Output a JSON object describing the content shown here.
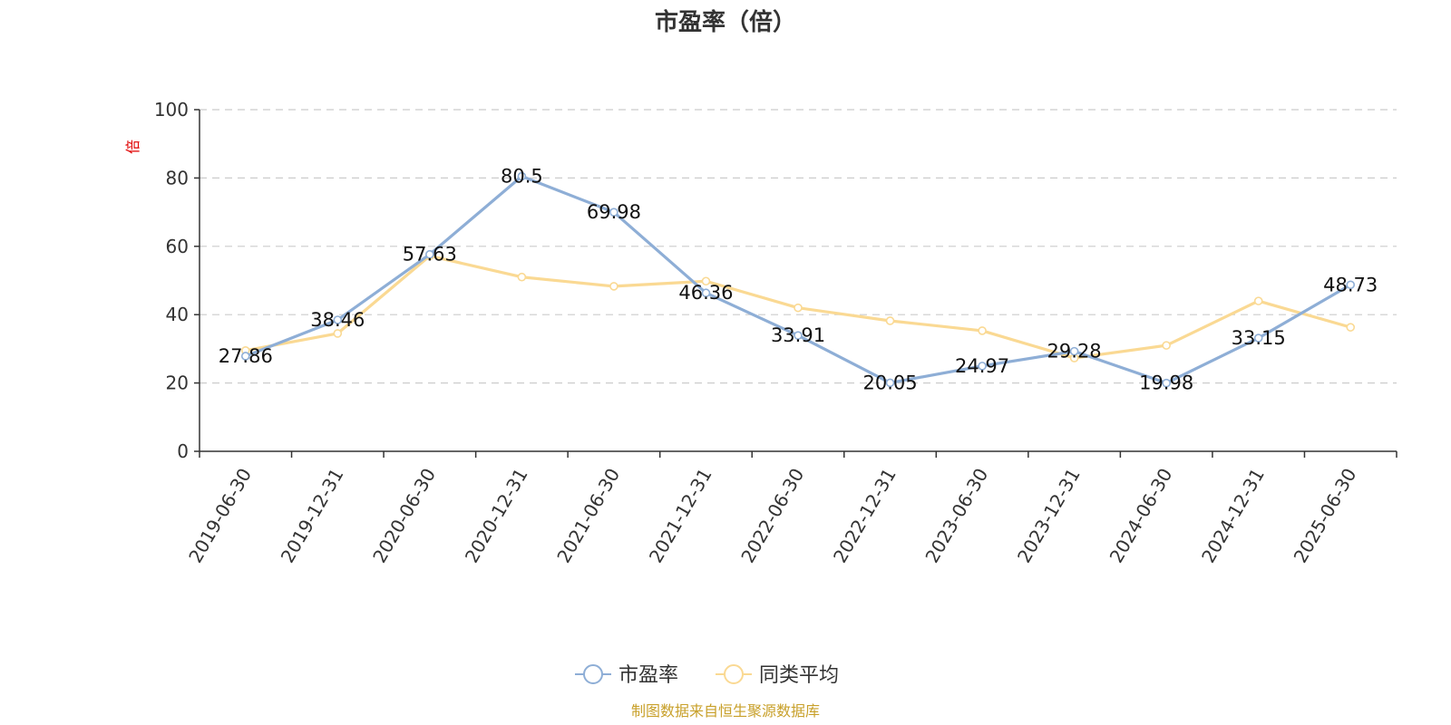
{
  "chart_data": {
    "type": "line",
    "title": "市盈率（倍）",
    "ylabel": "倍",
    "xlabel": "",
    "categories": [
      "2019-06-30",
      "2019-12-31",
      "2020-06-30",
      "2020-12-31",
      "2021-06-30",
      "2021-12-31",
      "2022-06-30",
      "2022-12-31",
      "2023-06-30",
      "2023-12-31",
      "2024-06-30",
      "2024-12-31",
      "2025-06-30"
    ],
    "ylim": [
      0,
      100
    ],
    "yticks": [
      0,
      20,
      40,
      60,
      80,
      100
    ],
    "grid": true,
    "legend_position": "bottom-center",
    "series": [
      {
        "name": "市盈率",
        "color": "#8eaed6",
        "values": [
          27.86,
          38.46,
          57.63,
          80.5,
          69.98,
          46.36,
          33.91,
          20.05,
          24.97,
          29.28,
          19.98,
          33.15,
          48.73
        ],
        "labels": [
          "27.86",
          "38.46",
          "57.63",
          "80.5",
          "69.98",
          "46.36",
          "33.91",
          "20.05",
          "24.97",
          "29.28",
          "19.98",
          "33.15",
          "48.73"
        ]
      },
      {
        "name": "同类平均",
        "color": "#fad993",
        "values": [
          29.5,
          34.5,
          57.2,
          51.0,
          48.3,
          49.8,
          42.0,
          38.2,
          35.3,
          27.3,
          31.0,
          44.0,
          36.3
        ]
      }
    ]
  },
  "footer": {
    "source_text": "制图数据来自恒生聚源数据库"
  }
}
